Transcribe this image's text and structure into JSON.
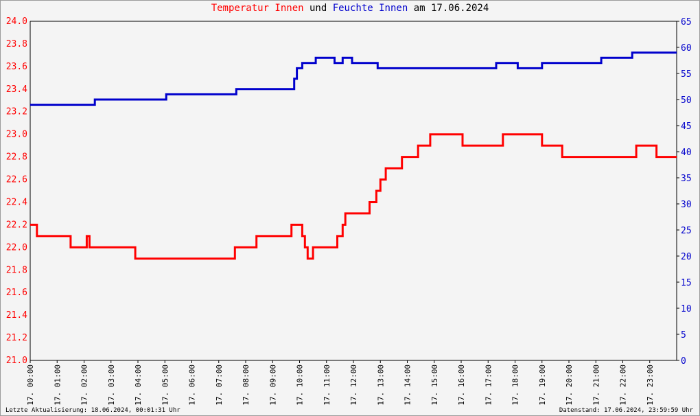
{
  "title": {
    "part1": "Temperatur Innen",
    "part2": " und ",
    "part3": "Feuchte Innen",
    "part4": " am 17.06.2024"
  },
  "footer": {
    "left": "Letzte Aktualisierung: 18.06.2024, 00:01:31 Uhr",
    "right": "Datenstand: 17.06.2024, 23:59:59 Uhr"
  },
  "colors": {
    "temperature": "#ff0000",
    "humidity": "#0000cc",
    "grid": "#000000",
    "minor_grid": "#bbbbbb",
    "background": "#f4f4f4"
  },
  "chart_data": {
    "type": "line",
    "title": "Temperatur Innen und Feuchte Innen am 17.06.2024",
    "x_range_hours": [
      0,
      24
    ],
    "x_tick_labels": [
      "17. 00:00",
      "17. 01:00",
      "17. 02:00",
      "17. 03:00",
      "17. 04:00",
      "17. 05:00",
      "17. 06:00",
      "17. 07:00",
      "17. 08:00",
      "17. 09:00",
      "17. 10:00",
      "17. 11:00",
      "17. 12:00",
      "17. 13:00",
      "17. 14:00",
      "17. 15:00",
      "17. 16:00",
      "17. 17:00",
      "17. 18:00",
      "17. 19:00",
      "17. 20:00",
      "17. 21:00",
      "17. 22:00",
      "17. 23:00"
    ],
    "y_left": {
      "range": [
        21.0,
        24.0
      ],
      "tick_labels": [
        "21.0",
        "21.2",
        "21.4",
        "21.6",
        "21.8",
        "22.0",
        "22.2",
        "22.4",
        "22.6",
        "22.8",
        "23.0",
        "23.2",
        "23.4",
        "23.6",
        "23.8",
        "24.0"
      ]
    },
    "y_right": {
      "range": [
        0,
        65
      ],
      "tick_labels": [
        "0",
        "5",
        "10",
        "15",
        "20",
        "25",
        "30",
        "35",
        "40",
        "45",
        "50",
        "55",
        "60",
        "65"
      ]
    },
    "grid": true,
    "series": [
      {
        "name": "Temperatur Innen",
        "axis": "left",
        "points": [
          [
            0.0,
            22.2
          ],
          [
            0.25,
            22.1
          ],
          [
            1.5,
            22.1
          ],
          [
            1.5,
            22.0
          ],
          [
            2.1,
            22.1
          ],
          [
            2.2,
            22.0
          ],
          [
            3.8,
            22.0
          ],
          [
            3.9,
            21.9
          ],
          [
            7.6,
            21.9
          ],
          [
            7.6,
            22.0
          ],
          [
            8.2,
            22.0
          ],
          [
            8.4,
            22.1
          ],
          [
            9.6,
            22.1
          ],
          [
            9.7,
            22.2
          ],
          [
            10.1,
            22.1
          ],
          [
            10.2,
            22.0
          ],
          [
            10.3,
            21.9
          ],
          [
            10.5,
            22.0
          ],
          [
            11.2,
            22.0
          ],
          [
            11.4,
            22.1
          ],
          [
            11.6,
            22.2
          ],
          [
            11.7,
            22.3
          ],
          [
            12.5,
            22.3
          ],
          [
            12.6,
            22.4
          ],
          [
            12.85,
            22.5
          ],
          [
            13.0,
            22.6
          ],
          [
            13.2,
            22.7
          ],
          [
            13.7,
            22.7
          ],
          [
            13.8,
            22.8
          ],
          [
            14.3,
            22.8
          ],
          [
            14.4,
            22.9
          ],
          [
            14.8,
            22.9
          ],
          [
            14.85,
            23.0
          ],
          [
            16.0,
            23.0
          ],
          [
            16.05,
            22.9
          ],
          [
            17.5,
            22.9
          ],
          [
            17.55,
            23.0
          ],
          [
            18.9,
            23.0
          ],
          [
            19.0,
            22.9
          ],
          [
            19.7,
            22.9
          ],
          [
            19.75,
            22.8
          ],
          [
            21.6,
            22.8
          ],
          [
            21.6,
            22.8
          ],
          [
            22.4,
            22.8
          ],
          [
            22.5,
            22.9
          ],
          [
            23.2,
            22.9
          ],
          [
            23.25,
            22.8
          ],
          [
            24.0,
            22.8
          ]
        ]
      },
      {
        "name": "Feuchte Innen",
        "axis": "right",
        "points": [
          [
            0.0,
            49
          ],
          [
            2.3,
            49
          ],
          [
            2.4,
            50
          ],
          [
            5.0,
            50
          ],
          [
            5.05,
            51
          ],
          [
            7.6,
            51
          ],
          [
            7.65,
            52
          ],
          [
            9.7,
            52
          ],
          [
            9.8,
            54
          ],
          [
            9.9,
            56
          ],
          [
            10.1,
            57
          ],
          [
            10.5,
            57
          ],
          [
            10.6,
            58
          ],
          [
            11.2,
            58
          ],
          [
            11.3,
            57
          ],
          [
            11.55,
            57
          ],
          [
            11.6,
            58
          ],
          [
            11.9,
            58
          ],
          [
            11.95,
            57
          ],
          [
            12.85,
            57
          ],
          [
            12.9,
            56
          ],
          [
            17.2,
            56
          ],
          [
            17.3,
            57
          ],
          [
            18.0,
            57
          ],
          [
            18.1,
            56
          ],
          [
            18.9,
            56
          ],
          [
            19.0,
            57
          ],
          [
            21.1,
            57
          ],
          [
            21.2,
            58
          ],
          [
            22.3,
            58
          ],
          [
            22.35,
            59
          ],
          [
            24.0,
            59
          ]
        ]
      }
    ]
  }
}
